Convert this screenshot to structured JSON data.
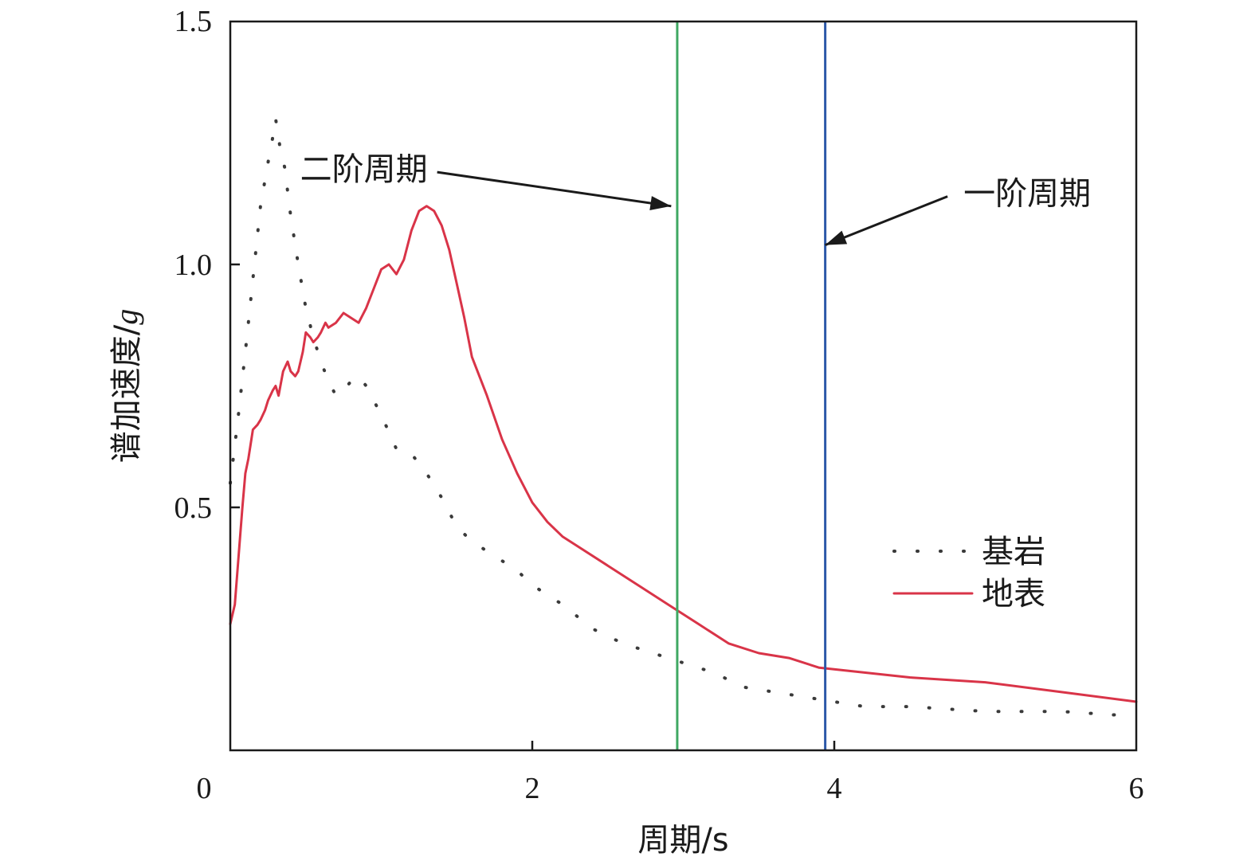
{
  "chart_data": {
    "type": "line",
    "xlabel": "周期/s",
    "ylabel_main": "谱加速度/",
    "ylabel_italic": "g",
    "xlim": [
      0,
      6
    ],
    "ylim": [
      0,
      1.5
    ],
    "x_ticks": [
      0,
      2,
      4,
      6
    ],
    "x_tick_labels": [
      "0",
      "2",
      "4",
      "6"
    ],
    "y_ticks": [
      0.5,
      1.0,
      1.5
    ],
    "y_tick_labels": [
      "0.5",
      "1.0",
      "1.5"
    ],
    "grid": false,
    "legend_position": "lower-right",
    "series": [
      {
        "name": "基岩",
        "style": "dotted",
        "color": "#3a3a3a",
        "x": [
          0.0,
          0.05,
          0.1,
          0.15,
          0.2,
          0.25,
          0.28,
          0.3,
          0.33,
          0.36,
          0.4,
          0.45,
          0.5,
          0.55,
          0.6,
          0.65,
          0.7,
          0.75,
          0.8,
          0.85,
          0.9,
          0.95,
          1.0,
          1.1,
          1.2,
          1.3,
          1.4,
          1.5,
          1.6,
          1.7,
          1.8,
          1.9,
          2.0,
          2.2,
          2.4,
          2.6,
          2.8,
          3.0,
          3.2,
          3.4,
          3.6,
          3.8,
          4.0,
          4.2,
          4.5,
          5.0,
          5.5,
          6.0
        ],
        "y": [
          0.55,
          0.68,
          0.82,
          0.97,
          1.12,
          1.21,
          1.26,
          1.3,
          1.24,
          1.2,
          1.1,
          1.0,
          0.91,
          0.85,
          0.8,
          0.76,
          0.73,
          0.74,
          0.76,
          0.77,
          0.75,
          0.72,
          0.69,
          0.62,
          0.61,
          0.57,
          0.52,
          0.46,
          0.43,
          0.41,
          0.39,
          0.37,
          0.34,
          0.3,
          0.25,
          0.22,
          0.2,
          0.18,
          0.16,
          0.13,
          0.12,
          0.11,
          0.1,
          0.09,
          0.09,
          0.08,
          0.08,
          0.07
        ]
      },
      {
        "name": "地表",
        "style": "solid",
        "color": "#d93448",
        "x": [
          0.0,
          0.03,
          0.06,
          0.08,
          0.1,
          0.12,
          0.15,
          0.18,
          0.2,
          0.23,
          0.25,
          0.28,
          0.3,
          0.32,
          0.35,
          0.38,
          0.4,
          0.43,
          0.45,
          0.48,
          0.5,
          0.53,
          0.55,
          0.58,
          0.6,
          0.63,
          0.65,
          0.7,
          0.75,
          0.8,
          0.85,
          0.9,
          0.95,
          1.0,
          1.05,
          1.1,
          1.15,
          1.2,
          1.25,
          1.3,
          1.35,
          1.4,
          1.45,
          1.5,
          1.55,
          1.6,
          1.7,
          1.8,
          1.9,
          2.0,
          2.1,
          2.2,
          2.3,
          2.5,
          2.7,
          2.9,
          3.1,
          3.3,
          3.5,
          3.7,
          3.9,
          4.2,
          4.5,
          5.0,
          5.5,
          6.0
        ],
        "y": [
          0.26,
          0.3,
          0.42,
          0.5,
          0.57,
          0.6,
          0.66,
          0.67,
          0.68,
          0.7,
          0.72,
          0.74,
          0.75,
          0.73,
          0.78,
          0.8,
          0.78,
          0.77,
          0.78,
          0.82,
          0.86,
          0.85,
          0.84,
          0.85,
          0.86,
          0.88,
          0.87,
          0.88,
          0.9,
          0.89,
          0.88,
          0.91,
          0.95,
          0.99,
          1.0,
          0.98,
          1.01,
          1.07,
          1.11,
          1.12,
          1.11,
          1.08,
          1.03,
          0.96,
          0.89,
          0.81,
          0.73,
          0.64,
          0.57,
          0.51,
          0.47,
          0.44,
          0.42,
          0.38,
          0.34,
          0.3,
          0.26,
          0.22,
          0.2,
          0.19,
          0.17,
          0.16,
          0.15,
          0.14,
          0.12,
          0.1
        ]
      }
    ],
    "vertical_lines": [
      {
        "x": 2.96,
        "color": "#3fa863"
      },
      {
        "x": 3.94,
        "color": "#2c58a8"
      }
    ],
    "annotations": [
      {
        "text": "二阶周期",
        "tail": [
          1.37,
          1.19
        ],
        "head": [
          2.92,
          1.12
        ]
      },
      {
        "text": "一阶周期",
        "tail": [
          4.75,
          1.14
        ],
        "head": [
          3.94,
          1.04
        ]
      }
    ]
  }
}
